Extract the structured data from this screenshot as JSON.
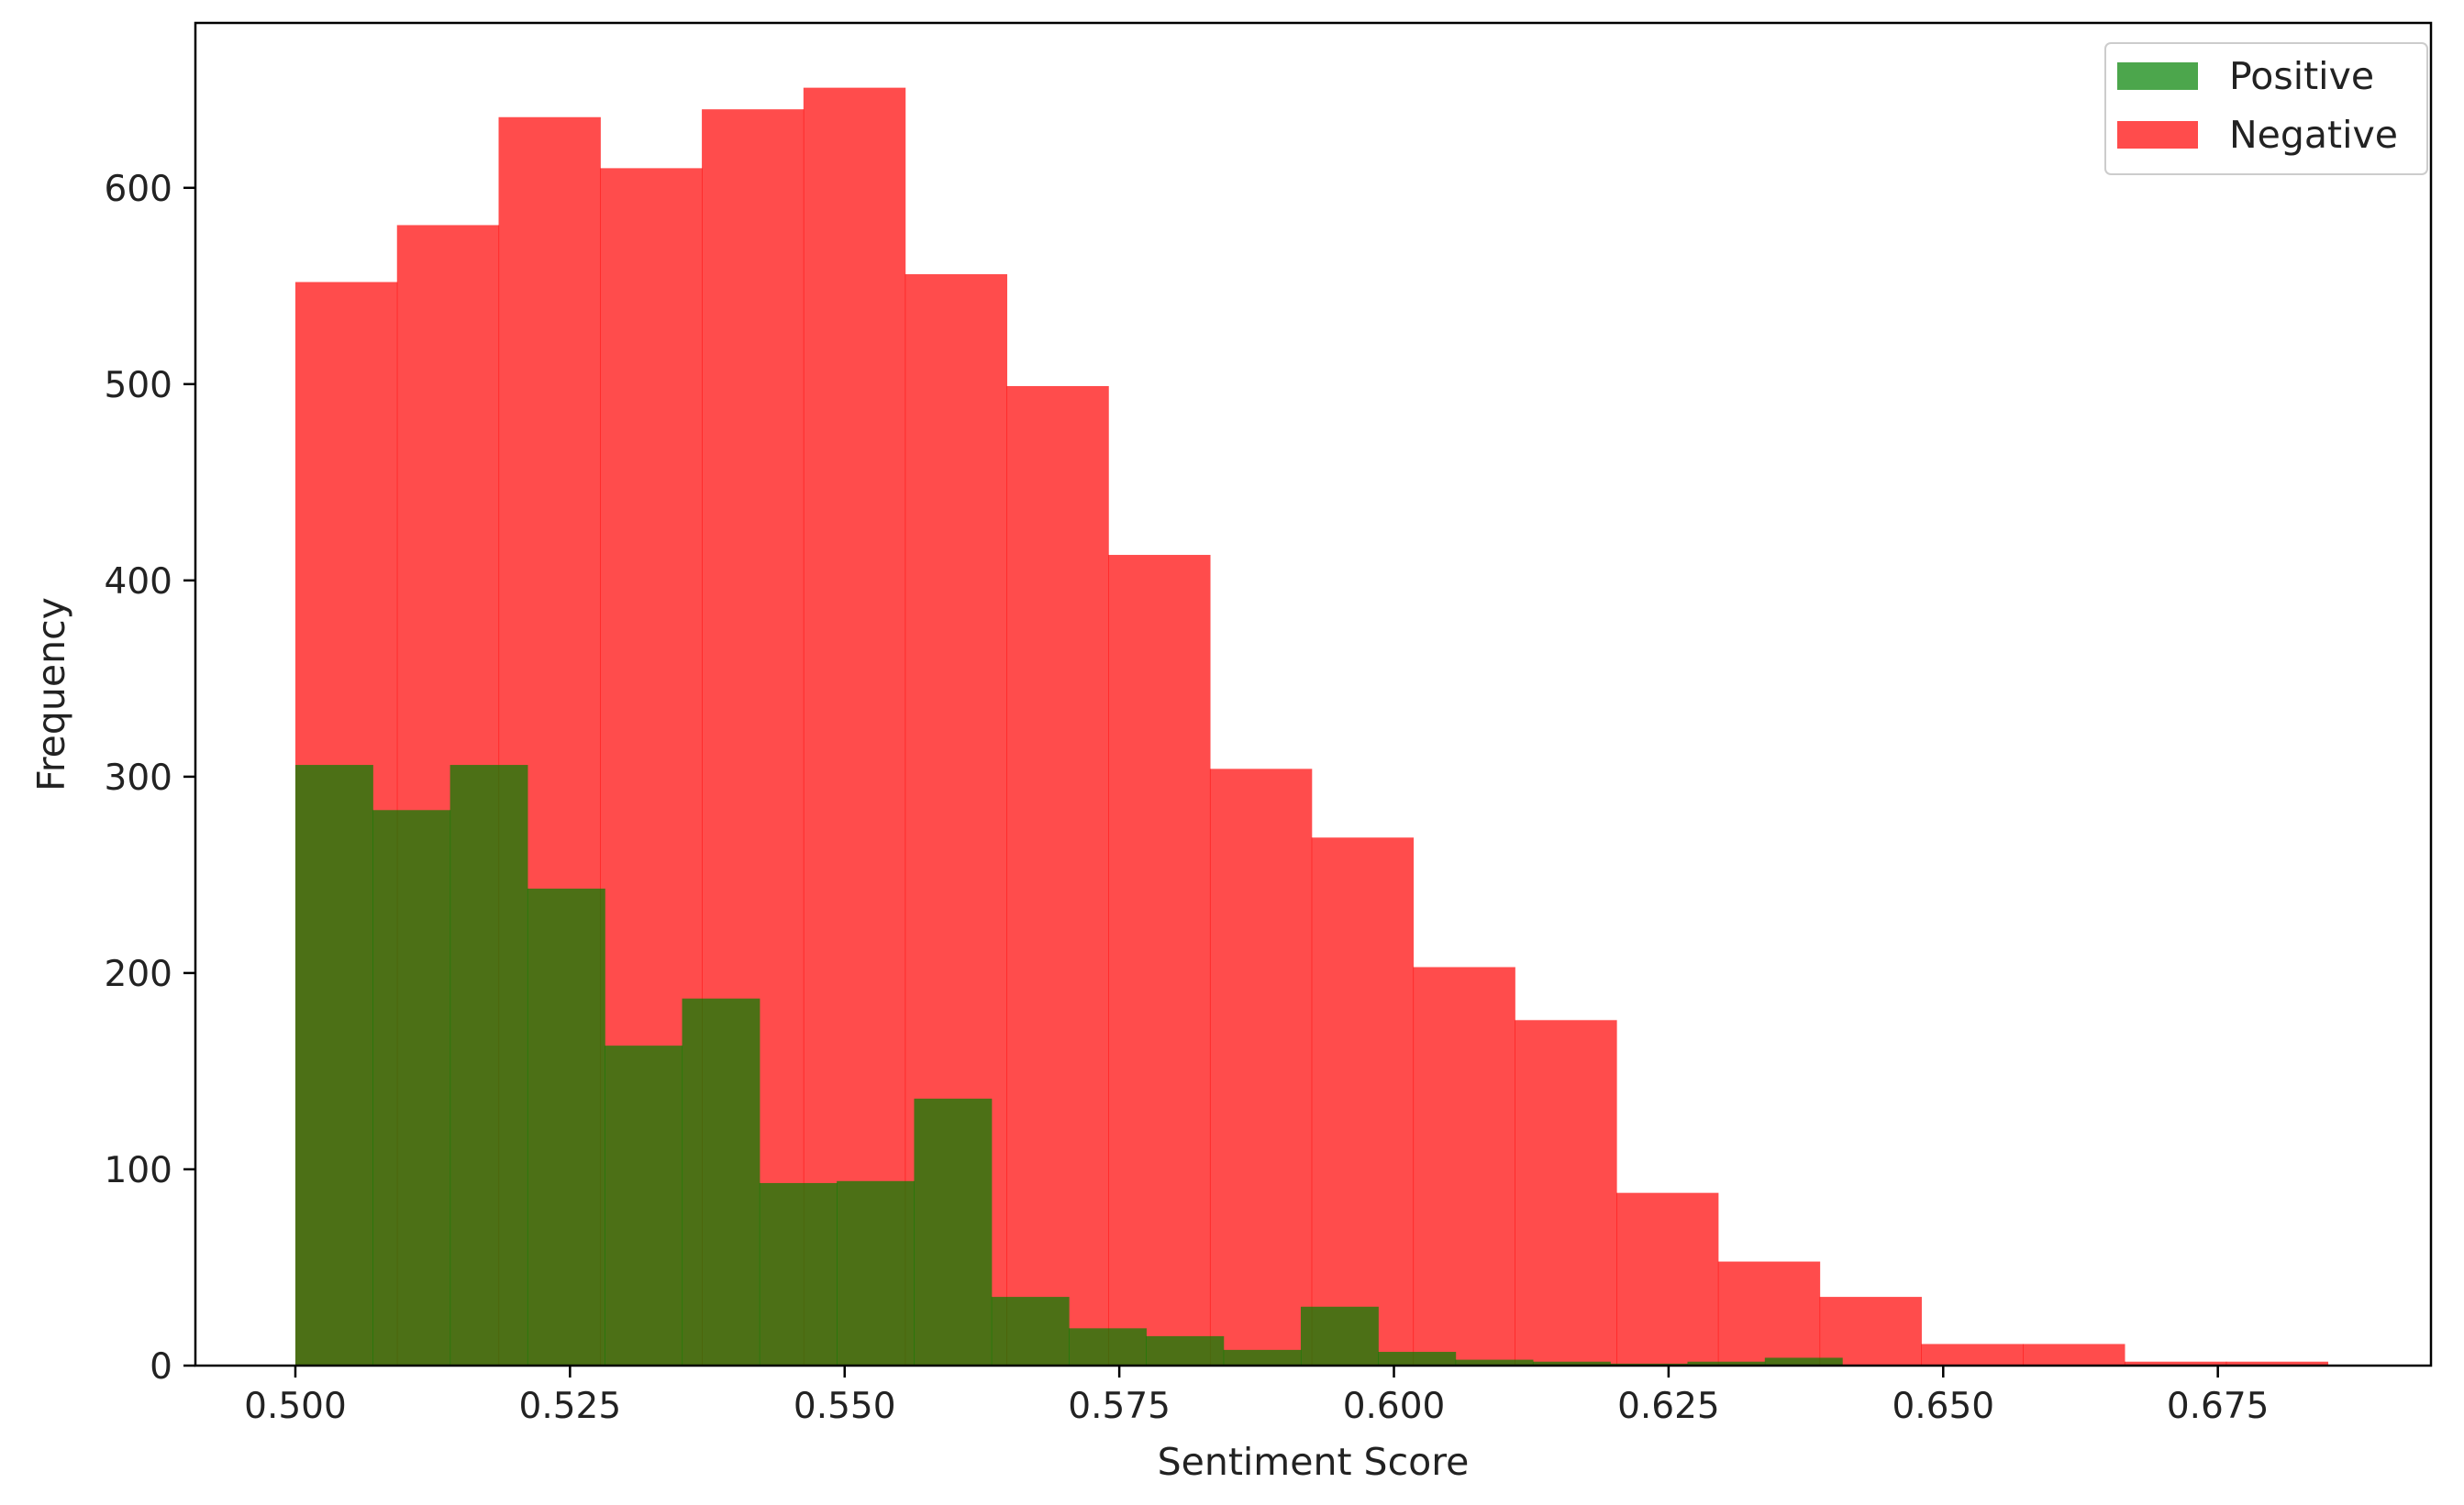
{
  "chart_data": {
    "type": "histogram",
    "title": "",
    "xlabel": "Sentiment Score",
    "ylabel": "Frequency",
    "xlim": [
      0.4909,
      0.6944
    ],
    "ylim": [
      0,
      684
    ],
    "xticks": [
      0.5,
      0.525,
      0.55,
      0.575,
      0.6,
      0.625,
      0.65,
      0.675
    ],
    "xtick_labels": [
      "0.500",
      "0.525",
      "0.550",
      "0.575",
      "0.600",
      "0.625",
      "0.650",
      "0.675"
    ],
    "yticks": [
      0,
      100,
      200,
      300,
      400,
      500,
      600
    ],
    "ytick_labels": [
      "0",
      "100",
      "200",
      "300",
      "400",
      "500",
      "600"
    ],
    "grid": false,
    "legend_position": "top-right",
    "series": [
      {
        "name": "Positive",
        "color": "#008000",
        "opacity": 0.7,
        "bin_start": 0.5,
        "bin_width": 0.00704,
        "values": [
          306,
          283,
          306,
          243,
          163,
          187,
          93,
          94,
          136,
          35,
          19,
          15,
          8,
          30,
          7,
          3,
          2,
          1,
          2,
          4,
          0,
          0,
          0,
          0,
          0,
          0
        ]
      },
      {
        "name": "Negative",
        "color": "#ff0000",
        "opacity": 0.7,
        "bin_start": 0.5,
        "bin_width": 0.00925,
        "values": [
          552,
          581,
          636,
          610,
          640,
          651,
          556,
          499,
          413,
          304,
          269,
          203,
          176,
          88,
          53,
          35,
          11,
          11,
          2,
          2
        ]
      }
    ]
  }
}
